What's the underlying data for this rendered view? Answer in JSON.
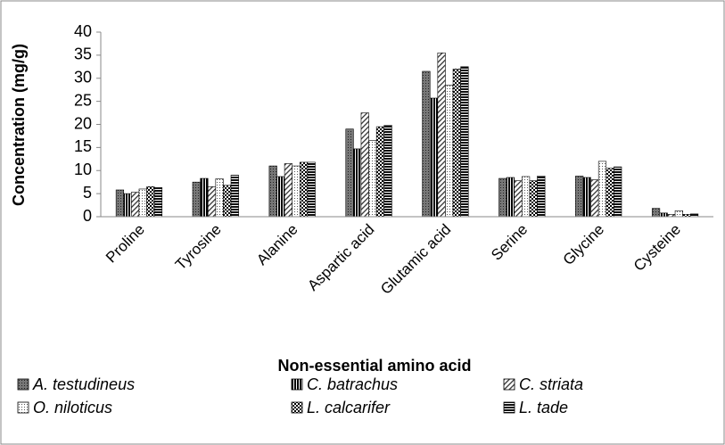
{
  "chart_data": {
    "type": "bar",
    "y_axis_label": "Concentration (mg/g)",
    "x_axis_label": "Non-essential amino acid",
    "categories": [
      "Proline",
      "Tyrosine",
      "Alanine",
      "Aspartic acid",
      "Glutamic acid",
      "Serine",
      "Glycine",
      "Cysteine"
    ],
    "series": [
      {
        "name": "A. testudineus",
        "values": [
          5.8,
          7.5,
          11.0,
          19.0,
          31.5,
          8.3,
          8.8,
          1.8
        ]
      },
      {
        "name": "C. batrachus",
        "values": [
          5.0,
          8.3,
          8.7,
          14.7,
          25.7,
          8.5,
          8.5,
          0.8
        ]
      },
      {
        "name": "C. striata",
        "values": [
          5.3,
          6.5,
          11.5,
          22.5,
          35.5,
          7.8,
          8.0,
          0.5
        ]
      },
      {
        "name": "O. niloticus",
        "values": [
          6.0,
          8.2,
          11.0,
          16.5,
          28.5,
          8.7,
          12.0,
          1.3
        ]
      },
      {
        "name": "L. calcarifer",
        "values": [
          6.5,
          6.8,
          11.8,
          19.5,
          32.0,
          7.8,
          10.5,
          0.5
        ]
      },
      {
        "name": "L. tade",
        "values": [
          6.3,
          9.0,
          11.8,
          19.8,
          32.5,
          8.8,
          10.8,
          0.6
        ]
      }
    ],
    "ylim": [
      0,
      40
    ],
    "yticks": [
      0,
      5,
      10,
      15,
      20,
      25,
      30,
      35,
      40
    ],
    "grid": false
  }
}
